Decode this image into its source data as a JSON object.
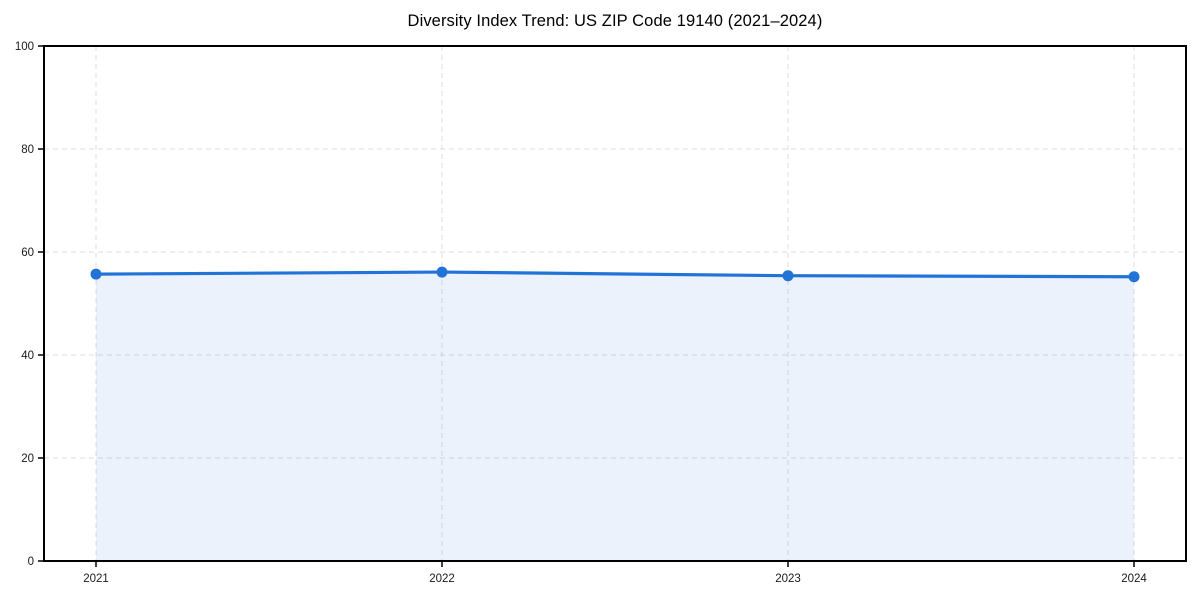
{
  "chart_data": {
    "type": "area",
    "title": "Diversity Index Trend: US ZIP Code 19140 (2021–2024)",
    "categories": [
      "2021",
      "2022",
      "2023",
      "2024"
    ],
    "series": [
      {
        "name": "Diversity Index",
        "values": [
          55.7,
          56.1,
          55.4,
          55.2
        ]
      }
    ],
    "xlabel": "",
    "ylabel": "",
    "ylim": [
      0,
      100
    ],
    "y_ticks": [
      0,
      20,
      40,
      60,
      80,
      100
    ],
    "grid": true,
    "grid_style": "dashed",
    "legend_position": "none",
    "colors": {
      "line": "#2273d8",
      "marker": "#2273d8",
      "fill": "#2273d8",
      "grid": "#dcdcdc",
      "axis": "#000000",
      "tick_label": "#1a1a1a",
      "title": "#000000",
      "background": "#ffffff"
    }
  }
}
